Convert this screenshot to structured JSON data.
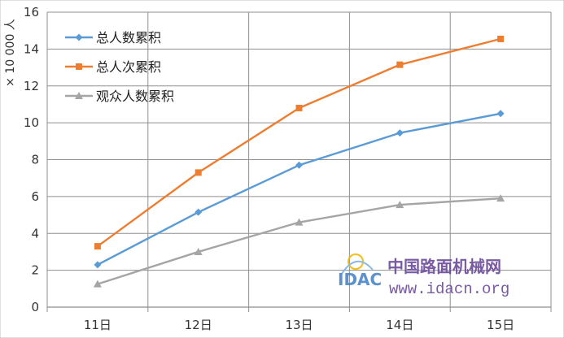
{
  "chart_data": {
    "type": "line",
    "categories": [
      "11日",
      "12日",
      "13日",
      "14日",
      "15日"
    ],
    "ylabel": "× 10 000 人",
    "ylim": [
      0,
      16
    ],
    "yticks": [
      0,
      2,
      4,
      6,
      8,
      10,
      12,
      14,
      16
    ],
    "grid": true,
    "legend_position": "top-left",
    "series": [
      {
        "name": "总人数累积",
        "values": [
          2.3,
          5.15,
          7.7,
          9.45,
          10.5
        ],
        "color": "#5b9bd5",
        "marker": "diamond"
      },
      {
        "name": "总人次累积",
        "values": [
          3.3,
          7.3,
          10.8,
          13.15,
          14.55
        ],
        "color": "#ed7d31",
        "marker": "square"
      },
      {
        "name": "观众人数累积",
        "values": [
          1.25,
          3.0,
          4.6,
          5.55,
          5.9
        ],
        "color": "#a5a5a5",
        "marker": "triangle"
      }
    ]
  },
  "watermark": {
    "logo_text": "IDAC",
    "site_name": "中国路面机械网",
    "url": "www.idacn.org"
  }
}
